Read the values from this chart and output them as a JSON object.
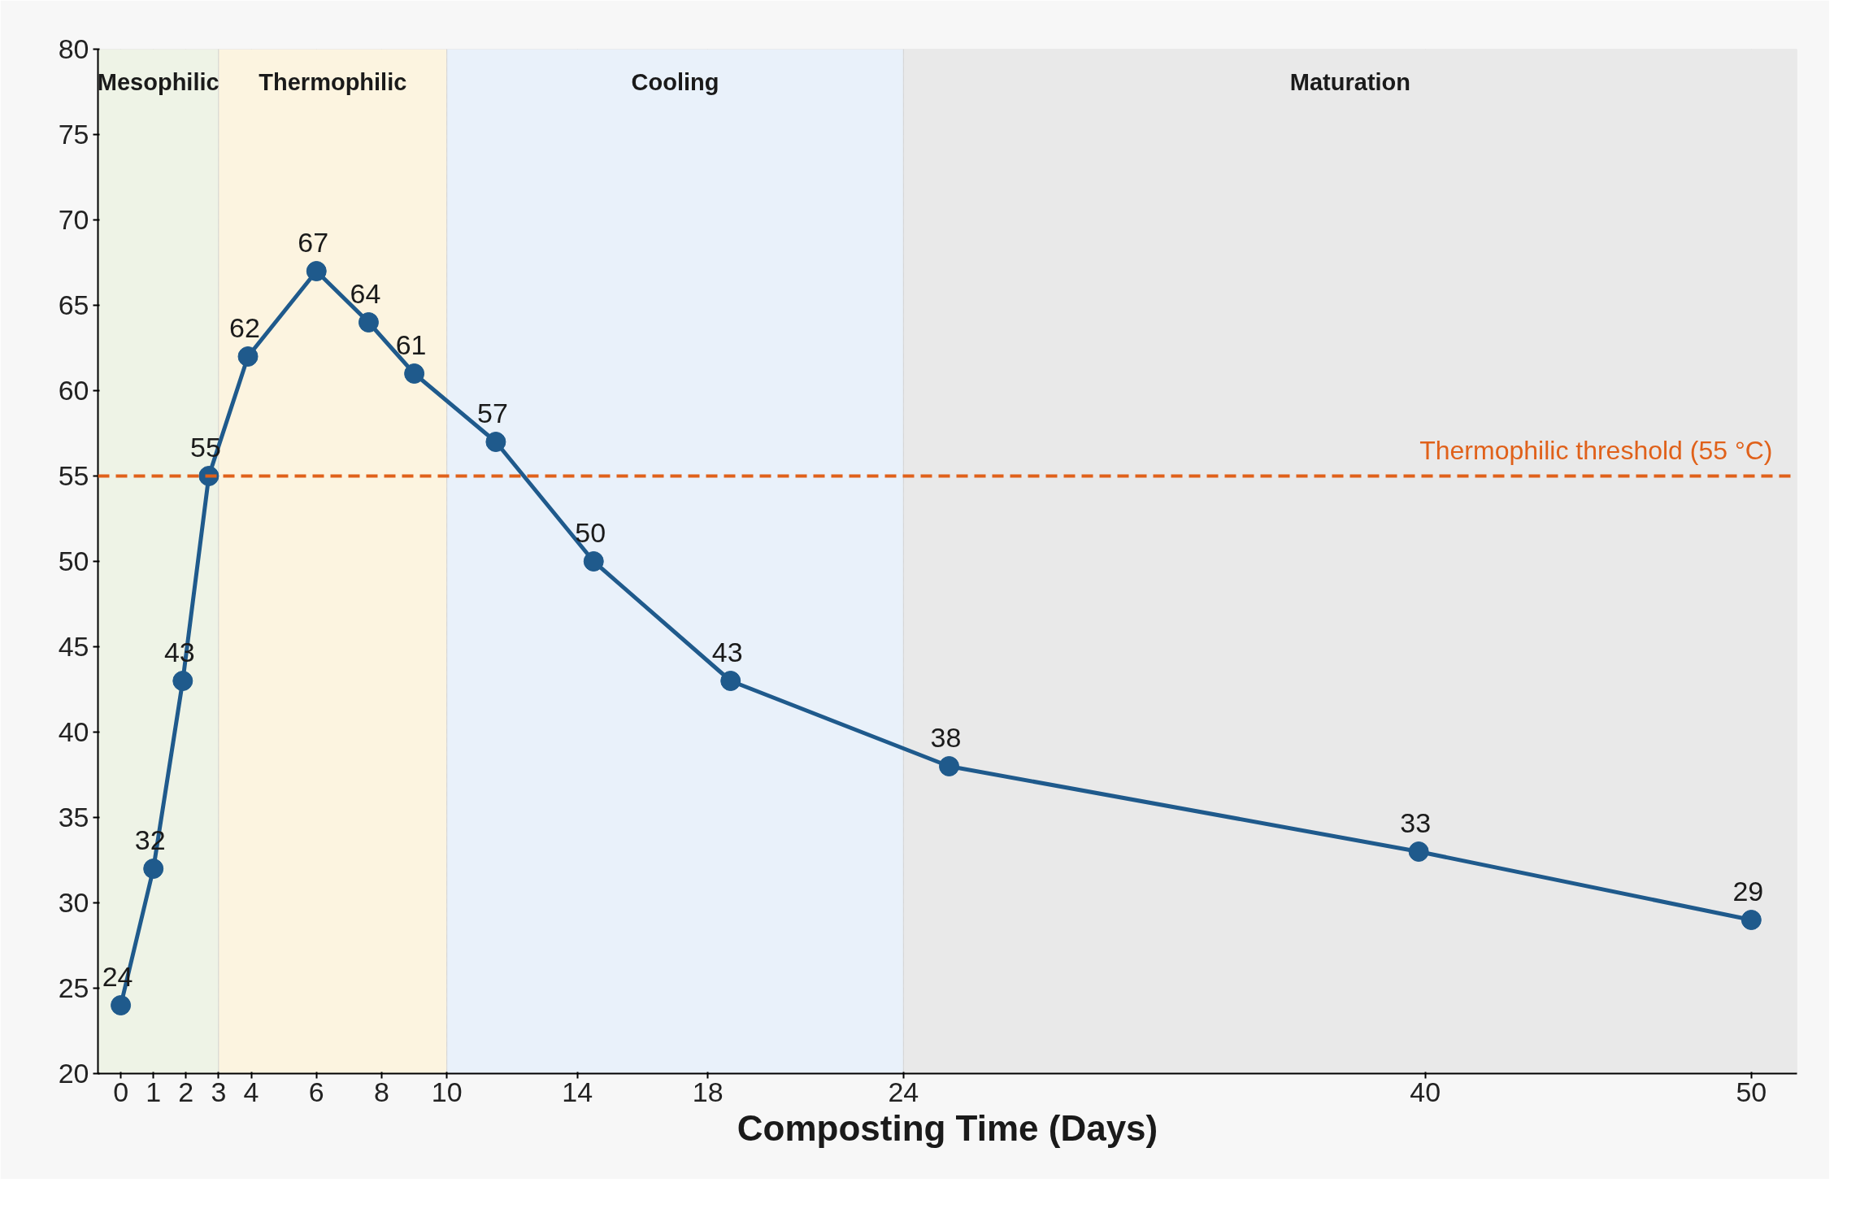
{
  "chart_data": {
    "type": "line",
    "xlabel": "Composting Time (Days)",
    "x": [
      0,
      1,
      1.9,
      2.7,
      3.9,
      6,
      7.6,
      9,
      11.5,
      14.5,
      18.7,
      25.4,
      39.8,
      50
    ],
    "series": [
      {
        "color": "#1f5a8c",
        "values": [
          24,
          32,
          43,
          55,
          62,
          67,
          64,
          61,
          57,
          50,
          43,
          38,
          33,
          29
        ]
      }
    ],
    "data_labels": true,
    "marker": "circle",
    "line_style": "solid",
    "xlim": [
      -0.7,
      51.4
    ],
    "xticks": [
      0,
      1,
      2,
      3,
      4,
      6,
      8,
      10,
      14,
      18,
      24,
      40,
      50
    ],
    "ylim": [
      20,
      80
    ],
    "yticks": [
      20,
      25,
      30,
      35,
      40,
      45,
      50,
      55,
      60,
      65,
      70,
      75,
      80
    ],
    "grid": true,
    "bands": [
      {
        "axis": "x",
        "from": -0.7,
        "to": 3,
        "label": "Mesophilic",
        "color": "#eef3e6"
      },
      {
        "axis": "x",
        "from": 3,
        "to": 10,
        "label": "Thermophilic",
        "color": "#fcf4e0"
      },
      {
        "axis": "x",
        "from": 10,
        "to": 24,
        "label": "Cooling",
        "color": "#e9f1fa"
      },
      {
        "axis": "x",
        "from": 24,
        "to": 51.4,
        "label": "Maturation",
        "color": "#e9e9e9"
      }
    ],
    "ref_lines": [
      {
        "axis": "y",
        "value": 55,
        "label": "Thermophilic threshold (55 °C)",
        "color": "#e0611a",
        "line_style": "dashed"
      }
    ]
  }
}
